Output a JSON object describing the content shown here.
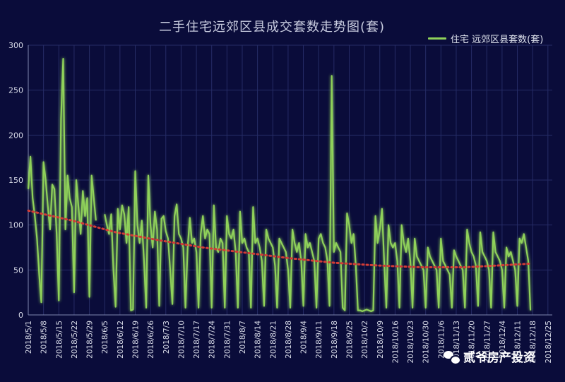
{
  "chart_data": {
    "type": "line",
    "title": "二手住宅远郊区县成交套数走势图(套)",
    "legend": {
      "placement": "top-right"
    },
    "series": [
      {
        "name": "住宅 远郊区县套数(套)",
        "color": "#8fd15a",
        "values": [
          [
            0,
            140
          ],
          [
            1,
            176
          ],
          [
            2,
            130
          ],
          [
            3,
            110
          ],
          [
            4,
            85
          ],
          [
            5,
            45
          ],
          [
            6,
            14
          ],
          [
            7,
            170
          ],
          [
            8,
            150
          ],
          [
            9,
            120
          ],
          [
            10,
            95
          ],
          [
            11,
            145
          ],
          [
            12,
            140
          ],
          [
            13,
            90
          ],
          [
            14,
            16
          ],
          [
            15,
            218
          ],
          [
            16,
            285
          ],
          [
            17,
            95
          ],
          [
            18,
            155
          ],
          [
            19,
            130
          ],
          [
            20,
            120
          ],
          [
            21,
            25
          ],
          [
            22,
            150
          ],
          [
            23,
            120
          ],
          [
            24,
            90
          ],
          [
            25,
            138
          ],
          [
            26,
            110
          ],
          [
            27,
            130
          ],
          [
            28,
            20
          ],
          [
            29,
            155
          ],
          [
            30,
            130
          ],
          [
            31,
            105
          ],
          [
            35,
            112
          ],
          [
            36,
            100
          ],
          [
            37,
            90
          ],
          [
            38,
            112
          ],
          [
            39,
            50
          ],
          [
            40,
            9
          ],
          [
            41,
            118
          ],
          [
            42,
            95
          ],
          [
            43,
            122
          ],
          [
            44,
            112
          ],
          [
            45,
            80
          ],
          [
            46,
            120
          ],
          [
            47,
            5
          ],
          [
            48,
            6
          ],
          [
            49,
            160
          ],
          [
            50,
            100
          ],
          [
            51,
            80
          ],
          [
            52,
            105
          ],
          [
            53,
            60
          ],
          [
            54,
            8
          ],
          [
            55,
            155
          ],
          [
            56,
            100
          ],
          [
            57,
            75
          ],
          [
            58,
            115
          ],
          [
            59,
            95
          ],
          [
            60,
            10
          ],
          [
            61,
            107
          ],
          [
            62,
            110
          ],
          [
            63,
            93
          ],
          [
            64,
            85
          ],
          [
            65,
            50
          ],
          [
            66,
            12
          ],
          [
            67,
            110
          ],
          [
            68,
            123
          ],
          [
            69,
            90
          ],
          [
            70,
            85
          ],
          [
            71,
            75
          ],
          [
            72,
            8
          ],
          [
            73,
            75
          ],
          [
            74,
            108
          ],
          [
            75,
            80
          ],
          [
            76,
            85
          ],
          [
            77,
            70
          ],
          [
            78,
            8
          ],
          [
            79,
            90
          ],
          [
            80,
            110
          ],
          [
            81,
            85
          ],
          [
            82,
            95
          ],
          [
            83,
            90
          ],
          [
            84,
            8
          ],
          [
            85,
            122
          ],
          [
            86,
            75
          ],
          [
            87,
            70
          ],
          [
            88,
            85
          ],
          [
            89,
            80
          ],
          [
            90,
            8
          ],
          [
            91,
            110
          ],
          [
            92,
            90
          ],
          [
            93,
            85
          ],
          [
            94,
            95
          ],
          [
            95,
            70
          ],
          [
            96,
            8
          ],
          [
            97,
            115
          ],
          [
            98,
            80
          ],
          [
            99,
            85
          ],
          [
            100,
            75
          ],
          [
            101,
            70
          ],
          [
            102,
            8
          ],
          [
            103,
            120
          ],
          [
            104,
            80
          ],
          [
            105,
            85
          ],
          [
            106,
            75
          ],
          [
            107,
            60
          ],
          [
            108,
            10
          ],
          [
            109,
            95
          ],
          [
            110,
            85
          ],
          [
            111,
            80
          ],
          [
            112,
            75
          ],
          [
            113,
            55
          ],
          [
            114,
            8
          ],
          [
            115,
            85
          ],
          [
            116,
            80
          ],
          [
            117,
            75
          ],
          [
            118,
            70
          ],
          [
            119,
            50
          ],
          [
            120,
            8
          ],
          [
            121,
            95
          ],
          [
            122,
            80
          ],
          [
            123,
            70
          ],
          [
            124,
            80
          ],
          [
            125,
            60
          ],
          [
            126,
            10
          ],
          [
            127,
            90
          ],
          [
            128,
            75
          ],
          [
            129,
            80
          ],
          [
            130,
            70
          ],
          [
            131,
            60
          ],
          [
            132,
            8
          ],
          [
            133,
            85
          ],
          [
            134,
            90
          ],
          [
            135,
            80
          ],
          [
            136,
            75
          ],
          [
            137,
            60
          ],
          [
            138,
            10
          ],
          [
            139,
            266
          ],
          [
            140,
            70
          ],
          [
            141,
            80
          ],
          [
            142,
            75
          ],
          [
            143,
            70
          ],
          [
            144,
            8
          ],
          [
            145,
            5
          ],
          [
            146,
            113
          ],
          [
            147,
            100
          ],
          [
            148,
            80
          ],
          [
            149,
            90
          ],
          [
            150,
            55
          ],
          [
            151,
            5
          ],
          [
            152,
            5
          ],
          [
            153,
            4
          ],
          [
            154,
            5
          ],
          [
            155,
            6
          ],
          [
            156,
            5
          ],
          [
            157,
            4
          ],
          [
            158,
            5
          ],
          [
            159,
            110
          ],
          [
            160,
            80
          ],
          [
            161,
            95
          ],
          [
            162,
            118
          ],
          [
            163,
            60
          ],
          [
            164,
            8
          ],
          [
            165,
            100
          ],
          [
            166,
            80
          ],
          [
            167,
            75
          ],
          [
            168,
            80
          ],
          [
            169,
            60
          ],
          [
            170,
            8
          ],
          [
            171,
            100
          ],
          [
            172,
            80
          ],
          [
            173,
            70
          ],
          [
            174,
            85
          ],
          [
            175,
            60
          ],
          [
            176,
            8
          ],
          [
            177,
            85
          ],
          [
            178,
            65
          ],
          [
            179,
            60
          ],
          [
            180,
            55
          ],
          [
            181,
            50
          ],
          [
            182,
            8
          ],
          [
            183,
            75
          ],
          [
            184,
            65
          ],
          [
            185,
            60
          ],
          [
            186,
            55
          ],
          [
            187,
            50
          ],
          [
            188,
            8
          ],
          [
            189,
            85
          ],
          [
            190,
            60
          ],
          [
            191,
            55
          ],
          [
            192,
            50
          ],
          [
            193,
            45
          ],
          [
            194,
            8
          ],
          [
            195,
            72
          ],
          [
            196,
            65
          ],
          [
            197,
            60
          ],
          [
            198,
            55
          ],
          [
            199,
            50
          ],
          [
            200,
            8
          ],
          [
            201,
            95
          ],
          [
            202,
            80
          ],
          [
            203,
            70
          ],
          [
            204,
            65
          ],
          [
            205,
            55
          ],
          [
            206,
            10
          ],
          [
            207,
            92
          ],
          [
            208,
            70
          ],
          [
            209,
            65
          ],
          [
            210,
            60
          ],
          [
            211,
            50
          ],
          [
            212,
            8
          ],
          [
            213,
            92
          ],
          [
            214,
            70
          ],
          [
            215,
            65
          ],
          [
            216,
            60
          ],
          [
            217,
            50
          ],
          [
            218,
            8
          ],
          [
            219,
            75
          ],
          [
            220,
            65
          ],
          [
            221,
            70
          ],
          [
            222,
            60
          ],
          [
            223,
            50
          ],
          [
            224,
            10
          ],
          [
            225,
            85
          ],
          [
            226,
            80
          ],
          [
            227,
            90
          ],
          [
            228,
            75
          ],
          [
            229,
            60
          ],
          [
            230,
            5
          ]
        ]
      },
      {
        "name": "",
        "color": "#d23c36",
        "style": "dotted-trend",
        "values": [
          [
            0,
            116
          ],
          [
            20,
            105
          ],
          [
            40,
            92
          ],
          [
            60,
            83
          ],
          [
            80,
            75
          ],
          [
            100,
            69
          ],
          [
            120,
            63
          ],
          [
            140,
            58
          ],
          [
            160,
            55
          ],
          [
            180,
            53
          ],
          [
            200,
            53
          ],
          [
            215,
            55
          ],
          [
            230,
            57
          ]
        ]
      }
    ],
    "x": {
      "min": 0,
      "max": 240,
      "tick_labels": [
        "2018/5/1",
        "2018/5/8",
        "2018/5/15",
        "2018/5/22",
        "2018/5/29",
        "2018/6/5",
        "2018/6/12",
        "2018/6/19",
        "2018/6/26",
        "2018/7/3",
        "2018/7/10",
        "2018/7/17",
        "2018/7/24",
        "2018/7/31",
        "2018/8/7",
        "2018/8/14",
        "2018/8/21",
        "2018/8/28",
        "2018/9/4",
        "2018/9/11",
        "2018/9/18",
        "2018/9/25",
        "2018/10/2",
        "2018/10/9",
        "2018/10/16",
        "2018/10/23",
        "2018/10/30",
        "2018/11/6",
        "2018/11/13",
        "2018/11/20",
        "2018/11/27",
        "2018/12/4",
        "2018/12/11",
        "2018/12/18",
        "2018/12/25"
      ],
      "tick_every": 7
    },
    "y": {
      "min": 0,
      "max": 300,
      "tick_step": 50
    },
    "grid": true
  },
  "colors": {
    "background": "#0a0c3a",
    "grid": "#262c66",
    "axis_text": "#d8dbe8"
  },
  "watermark": {
    "icon": "wechat-icon",
    "text": "贰爷房产投资"
  }
}
